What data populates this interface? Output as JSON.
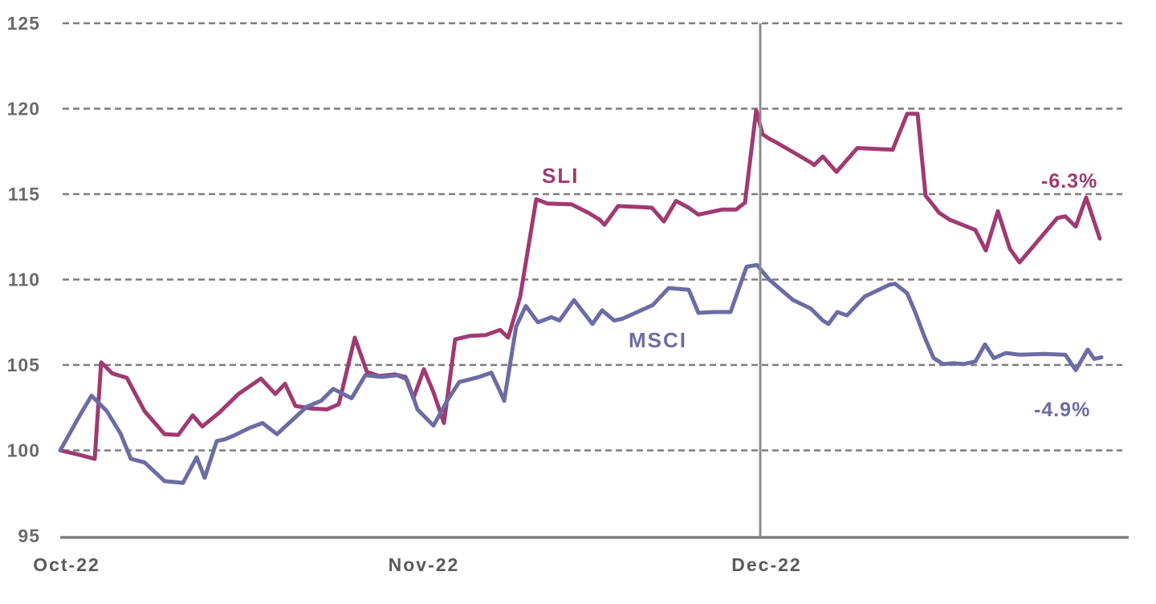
{
  "chart_data": {
    "type": "line",
    "title": "",
    "xlabel": "",
    "ylabel": "",
    "grid": "horizontal-dashed",
    "legend_position": "inline-labels",
    "y_axis": {
      "min": 95,
      "max": 125,
      "ticks": [
        125,
        120,
        115,
        110,
        105,
        100,
        95
      ]
    },
    "x_axis": {
      "ticks": [
        {
          "label": "Oct-22",
          "x": 83
        },
        {
          "label": "Nov-22",
          "x": 528
        },
        {
          "label": "Dec-22",
          "x": 955
        }
      ]
    },
    "event_line_x": 947,
    "colors": {
      "gridline": "#7d7d7d",
      "axis": "#7d7d7d",
      "event_line": "#8c8c8c",
      "y_tick_label": "#6b6b6b",
      "x_tick_label": "#5a5a5a"
    },
    "series": [
      {
        "name": "SLI",
        "color": "#A03A70",
        "end_change_label": "-6.3%",
        "points": [
          [
            75,
            100.0
          ],
          [
            98,
            99.75
          ],
          [
            118,
            99.5
          ],
          [
            126,
            105.15
          ],
          [
            140,
            104.5
          ],
          [
            158,
            104.25
          ],
          [
            180,
            102.3
          ],
          [
            205,
            100.95
          ],
          [
            222,
            100.9
          ],
          [
            240,
            102.05
          ],
          [
            252,
            101.4
          ],
          [
            273,
            102.2
          ],
          [
            297,
            103.3
          ],
          [
            325,
            104.2
          ],
          [
            343,
            103.3
          ],
          [
            355,
            103.9
          ],
          [
            368,
            102.6
          ],
          [
            388,
            102.45
          ],
          [
            407,
            102.4
          ],
          [
            422,
            102.7
          ],
          [
            442,
            106.6
          ],
          [
            457,
            104.6
          ],
          [
            472,
            104.35
          ],
          [
            492,
            104.45
          ],
          [
            505,
            104.3
          ],
          [
            515,
            103.05
          ],
          [
            528,
            104.75
          ],
          [
            540,
            103.4
          ],
          [
            553,
            101.6
          ],
          [
            567,
            106.5
          ],
          [
            585,
            106.7
          ],
          [
            605,
            106.75
          ],
          [
            623,
            107.05
          ],
          [
            633,
            106.6
          ],
          [
            648,
            109.0
          ],
          [
            668,
            114.7
          ],
          [
            682,
            114.45
          ],
          [
            712,
            114.4
          ],
          [
            733,
            113.9
          ],
          [
            747,
            113.5
          ],
          [
            753,
            113.2
          ],
          [
            770,
            114.3
          ],
          [
            795,
            114.25
          ],
          [
            812,
            114.2
          ],
          [
            827,
            113.4
          ],
          [
            842,
            114.6
          ],
          [
            858,
            114.2
          ],
          [
            870,
            113.8
          ],
          [
            900,
            114.1
          ],
          [
            917,
            114.1
          ],
          [
            928,
            114.5
          ],
          [
            942,
            119.9
          ],
          [
            950,
            118.5
          ],
          [
            958,
            118.25
          ],
          [
            968,
            118.0
          ],
          [
            990,
            117.4
          ],
          [
            1010,
            116.85
          ],
          [
            1014,
            116.7
          ],
          [
            1025,
            117.2
          ],
          [
            1042,
            116.3
          ],
          [
            1055,
            117.0
          ],
          [
            1068,
            117.7
          ],
          [
            1090,
            117.65
          ],
          [
            1112,
            117.6
          ],
          [
            1130,
            119.7
          ],
          [
            1143,
            119.7
          ],
          [
            1153,
            114.9
          ],
          [
            1160,
            114.5
          ],
          [
            1170,
            113.9
          ],
          [
            1183,
            113.5
          ],
          [
            1215,
            112.9
          ],
          [
            1228,
            111.7
          ],
          [
            1243,
            114.0
          ],
          [
            1258,
            111.8
          ],
          [
            1270,
            111.0
          ],
          [
            1290,
            112.1
          ],
          [
            1317,
            113.6
          ],
          [
            1327,
            113.7
          ],
          [
            1340,
            113.1
          ],
          [
            1353,
            114.8
          ],
          [
            1370,
            112.4
          ]
        ]
      },
      {
        "name": "MSCI",
        "color": "#6C6CA4",
        "end_change_label": "-4.9%",
        "points": [
          [
            75,
            100.0
          ],
          [
            100,
            102.1
          ],
          [
            114,
            103.2
          ],
          [
            133,
            102.3
          ],
          [
            150,
            101.0
          ],
          [
            163,
            99.5
          ],
          [
            180,
            99.3
          ],
          [
            205,
            98.2
          ],
          [
            228,
            98.1
          ],
          [
            245,
            99.6
          ],
          [
            255,
            98.4
          ],
          [
            270,
            100.55
          ],
          [
            280,
            100.65
          ],
          [
            293,
            100.9
          ],
          [
            310,
            101.3
          ],
          [
            327,
            101.6
          ],
          [
            345,
            100.95
          ],
          [
            367,
            101.9
          ],
          [
            382,
            102.55
          ],
          [
            400,
            102.9
          ],
          [
            415,
            103.6
          ],
          [
            438,
            103.05
          ],
          [
            455,
            104.4
          ],
          [
            475,
            104.3
          ],
          [
            495,
            104.4
          ],
          [
            507,
            104.15
          ],
          [
            520,
            102.4
          ],
          [
            540,
            101.45
          ],
          [
            557,
            102.9
          ],
          [
            572,
            104.0
          ],
          [
            597,
            104.3
          ],
          [
            612,
            104.55
          ],
          [
            623,
            103.45
          ],
          [
            628,
            102.9
          ],
          [
            643,
            107.25
          ],
          [
            655,
            108.45
          ],
          [
            670,
            107.5
          ],
          [
            687,
            107.8
          ],
          [
            697,
            107.6
          ],
          [
            715,
            108.8
          ],
          [
            738,
            107.4
          ],
          [
            750,
            108.2
          ],
          [
            765,
            107.6
          ],
          [
            775,
            107.7
          ],
          [
            813,
            108.5
          ],
          [
            833,
            109.5
          ],
          [
            858,
            109.4
          ],
          [
            870,
            108.05
          ],
          [
            890,
            108.1
          ],
          [
            910,
            108.1
          ],
          [
            930,
            110.75
          ],
          [
            943,
            110.85
          ],
          [
            958,
            110.0
          ],
          [
            973,
            109.4
          ],
          [
            988,
            108.8
          ],
          [
            1010,
            108.3
          ],
          [
            1025,
            107.6
          ],
          [
            1032,
            107.4
          ],
          [
            1043,
            108.1
          ],
          [
            1055,
            107.9
          ],
          [
            1077,
            109.0
          ],
          [
            1108,
            109.7
          ],
          [
            1115,
            109.75
          ],
          [
            1130,
            109.2
          ],
          [
            1140,
            108.1
          ],
          [
            1152,
            106.6
          ],
          [
            1163,
            105.4
          ],
          [
            1175,
            105.05
          ],
          [
            1188,
            105.1
          ],
          [
            1200,
            105.05
          ],
          [
            1215,
            105.2
          ],
          [
            1227,
            106.2
          ],
          [
            1238,
            105.4
          ],
          [
            1253,
            105.7
          ],
          [
            1270,
            105.6
          ],
          [
            1300,
            105.65
          ],
          [
            1327,
            105.6
          ],
          [
            1340,
            104.7
          ],
          [
            1355,
            105.9
          ],
          [
            1363,
            105.35
          ],
          [
            1372,
            105.45
          ]
        ]
      }
    ]
  }
}
